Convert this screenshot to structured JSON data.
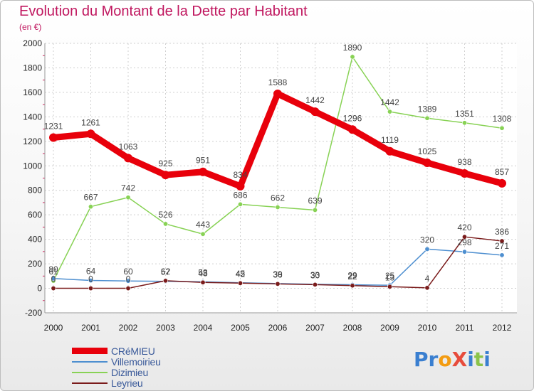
{
  "title": "Evolution du Montant de la Dette par Habitant",
  "subtitle": "(en €)",
  "logo": "ProXiti",
  "chart_data": {
    "type": "line",
    "title": "Evolution du Montant de la Dette par Habitant",
    "subtitle": "(en €)",
    "xlabel": "",
    "ylabel": "",
    "x": [
      "2000",
      "2001",
      "2002",
      "2003",
      "2004",
      "2005",
      "2006",
      "2007",
      "2008",
      "2009",
      "2010",
      "2011",
      "2012"
    ],
    "ylim": [
      -200,
      2000
    ],
    "yticks": [
      -200,
      0,
      200,
      400,
      600,
      800,
      1000,
      1200,
      1400,
      1600,
      1800,
      2000
    ],
    "grid": true,
    "legend": "bottom-left",
    "series": [
      {
        "name": "CRéMIEU",
        "color": "#e8000b",
        "values": [
          1231,
          1261,
          1063,
          925,
          951,
          834,
          1588,
          1442,
          1296,
          1119,
          1025,
          938,
          857
        ],
        "labels": [
          "1231",
          "1261",
          "1063",
          "925",
          "951",
          "834",
          "1588",
          "1442",
          "1296",
          "1119",
          "1025",
          "938",
          "857"
        ]
      },
      {
        "name": "Villemoirieu",
        "color": "#4e8fd0",
        "values": [
          80,
          64,
          60,
          57,
          53,
          45,
          39,
          33,
          29,
          25,
          320,
          298,
          271
        ],
        "labels": [
          "80",
          "64",
          "60",
          "57",
          "53",
          "45",
          "39",
          "33",
          "29",
          "25",
          "320",
          "298",
          "271"
        ]
      },
      {
        "name": "Dizimieu",
        "color": "#88d255",
        "values": [
          61,
          667,
          742,
          526,
          443,
          686,
          662,
          639,
          1890,
          1442,
          1389,
          1351,
          1308
        ],
        "labels": [
          "61",
          "667",
          "742",
          "526",
          "443",
          "686",
          "662",
          "639",
          "1890",
          "1442",
          "1389",
          "1351",
          "1308"
        ]
      },
      {
        "name": "Leyrieu",
        "color": "#7a1b1b",
        "values": [
          0,
          0,
          0,
          62,
          48,
          42,
          36,
          30,
          22,
          13,
          4,
          420,
          386
        ],
        "labels": [
          "0",
          "0",
          "0",
          "62",
          "48",
          "42",
          "36",
          "30",
          "22",
          "13",
          "4",
          "420",
          "386"
        ]
      }
    ]
  }
}
